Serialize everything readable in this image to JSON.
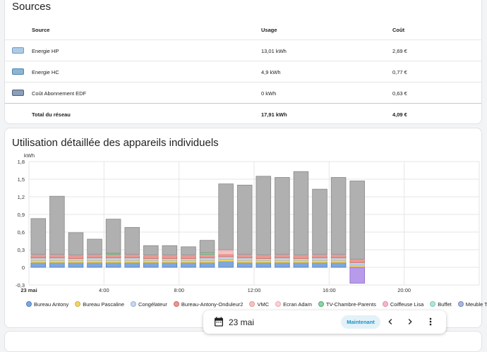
{
  "sources": {
    "title": "Sources",
    "headers": {
      "source": "Source",
      "usage": "Usage",
      "cost": "Coût"
    },
    "rows": [
      {
        "name": "Energie HP",
        "usage": "13,01 kWh",
        "cost": "2,69 €",
        "fill": "#aecbe5",
        "stroke": "#6d9cc5"
      },
      {
        "name": "Energie HC",
        "usage": "4,9 kWh",
        "cost": "0,77 €",
        "fill": "#8db4d2",
        "stroke": "#4e84ad"
      },
      {
        "name": "Coût Abonnement EDF",
        "usage": "0 kWh",
        "cost": "0,63 €",
        "fill": "#8c9fb9",
        "stroke": "#4c5f7d"
      }
    ],
    "total": {
      "label": "Total du réseau",
      "usage": "17,91 kWh",
      "cost": "4,09 €"
    }
  },
  "detail": {
    "title": "Utilisation détaillée des appareils individuels"
  },
  "chart_data": {
    "type": "bar",
    "stacked": true,
    "ylabel": "kWh",
    "ylim": [
      -0.3,
      1.8
    ],
    "yticks": [
      "-0,3",
      "0",
      "0,3",
      "0,6",
      "0,9",
      "1,2",
      "1,5",
      "1,8"
    ],
    "yticks_values": [
      -0.3,
      0,
      0.3,
      0.6,
      0.9,
      1.2,
      1.5,
      1.8
    ],
    "xticks": [
      {
        "label": "23 mai",
        "hour": 0,
        "bold": true
      },
      {
        "label": "4:00",
        "hour": 4
      },
      {
        "label": "8:00",
        "hour": 8
      },
      {
        "label": "12:00",
        "hour": 12
      },
      {
        "label": "16:00",
        "hour": 16
      },
      {
        "label": "20:00",
        "hour": 20
      }
    ],
    "hours": [
      0,
      1,
      2,
      3,
      4,
      5,
      6,
      7,
      8,
      9,
      10,
      11,
      12,
      13,
      14,
      15,
      16,
      17
    ],
    "series": [
      {
        "name": "Bureau Antony",
        "color": "#7ea7dc",
        "stroke": "#4f7fc3",
        "values": [
          0.08,
          0.08,
          0.08,
          0.08,
          0.08,
          0.08,
          0.08,
          0.08,
          0.08,
          0.08,
          0.1,
          0.08,
          0.08,
          0.08,
          0.08,
          0.08,
          0.08,
          0
        ]
      },
      {
        "name": "Bureau Pascaline",
        "color": "#f0d36a",
        "stroke": "#d4b23c",
        "values": [
          0.04,
          0.04,
          0.04,
          0.04,
          0.04,
          0.04,
          0.04,
          0.04,
          0.04,
          0.04,
          0.04,
          0.04,
          0.04,
          0.04,
          0.04,
          0.04,
          0.04,
          0.04
        ]
      },
      {
        "name": "Congélateur",
        "color": "#c7d8ee",
        "stroke": "#94b3da",
        "values": [
          0.04,
          0.04,
          0.03,
          0.04,
          0.04,
          0.04,
          0.03,
          0.03,
          0.03,
          0.04,
          0.04,
          0.04,
          0.03,
          0.04,
          0.03,
          0.04,
          0.04,
          0.04
        ]
      },
      {
        "name": "Bureau-Antony-Onduleur2",
        "color": "#e89a92",
        "stroke": "#cf6b60",
        "values": [
          0.04,
          0.04,
          0.04,
          0.04,
          0.04,
          0.04,
          0.04,
          0.04,
          0.04,
          0.04,
          0.04,
          0.04,
          0.04,
          0.04,
          0.04,
          0.04,
          0.04,
          0.04
        ]
      },
      {
        "name": "VMC",
        "color": "#f6c3bf",
        "stroke": "#e89a92",
        "values": [
          0.01,
          0.01,
          0.01,
          0.01,
          0.01,
          0.01,
          0.01,
          0.01,
          0.01,
          0.01,
          0.06,
          0.01,
          0.01,
          0.01,
          0.01,
          0.01,
          0.01,
          0.01
        ]
      },
      {
        "name": "Ecran Adam",
        "color": "#f9d2d7",
        "stroke": "#eaa8b1",
        "values": [
          0.01,
          0.01,
          0.01,
          0.01,
          0.01,
          0.01,
          0.01,
          0.01,
          0.01,
          0.01,
          0.02,
          0.01,
          0.01,
          0.01,
          0.01,
          0.01,
          0.01,
          0.01
        ]
      },
      {
        "name": "TV-Chambre-Parents",
        "color": "#8dd39f",
        "stroke": "#4caf6a",
        "values": [
          0,
          0,
          0,
          0,
          0.02,
          0,
          0,
          0,
          0,
          0.03,
          0,
          0,
          0,
          0,
          0,
          0,
          0,
          0
        ]
      },
      {
        "name": "Coiffeuse Lisa",
        "color": "#f3b9c9",
        "stroke": "#e08aa3",
        "values": [
          0,
          0,
          0,
          0,
          0,
          0,
          0,
          0,
          0,
          0,
          0,
          0,
          0,
          0,
          0,
          0,
          0,
          0
        ]
      },
      {
        "name": "Buffet",
        "color": "#b5e3da",
        "stroke": "#7ccabb",
        "values": [
          0,
          0,
          0,
          0,
          0,
          0,
          0,
          0,
          0,
          0,
          0,
          0,
          0,
          0,
          0,
          0,
          0,
          0
        ]
      },
      {
        "name": "Meuble TV",
        "color": "#a9b9dc",
        "stroke": "#7488bd",
        "values": [
          0,
          0,
          0,
          0,
          0,
          0,
          0,
          0,
          0,
          0,
          0,
          0,
          0,
          0,
          0,
          0,
          0,
          0
        ]
      },
      {
        "name": "",
        "color": "#b0b0b0",
        "stroke": "#8a8a8a",
        "values": [
          0.61,
          0.99,
          0.38,
          0.26,
          0.58,
          0.46,
          0.16,
          0.16,
          0.14,
          0.21,
          1.12,
          1.18,
          1.34,
          1.31,
          1.42,
          1.11,
          1.31,
          1.33
        ]
      },
      {
        "name": "",
        "color": "#b79ae9",
        "stroke": "#8e6bd3",
        "values": [
          0,
          0,
          0,
          0,
          0,
          0,
          0,
          0,
          0,
          0,
          0,
          0,
          0,
          0,
          0,
          0,
          0,
          -0.27
        ]
      }
    ]
  },
  "date_bar": {
    "date": "23 mai",
    "now_label": "Maintenant"
  },
  "icons": {
    "calendar": "calendar-icon",
    "prev": "chevron-left-icon",
    "next": "chevron-right-icon",
    "menu": "more-vertical-icon"
  }
}
